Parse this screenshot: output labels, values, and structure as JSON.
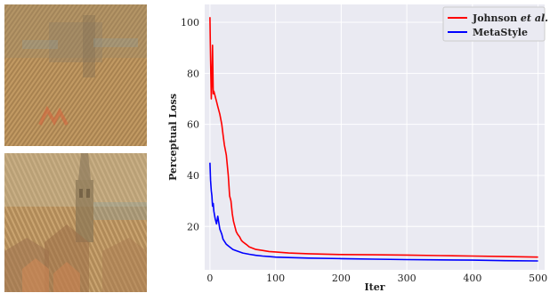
{
  "images": {
    "top": {
      "name": "stylized-building-noisy"
    },
    "bottom": {
      "name": "stylized-tower-city"
    }
  },
  "colors": {
    "plot_bg": "#eaeaf2",
    "grid": "#ffffff",
    "johnson": "#ff0000",
    "metastyle": "#0000ff",
    "thumb_top_base": "#b08a55",
    "thumb_bottom_base": "#b48f5e"
  },
  "chart_data": {
    "type": "line",
    "title": "",
    "xlabel": "Iter",
    "ylabel": "Perceptual Loss",
    "xlim": [
      -8,
      510
    ],
    "ylim": [
      3,
      107
    ],
    "xticks": [
      0,
      100,
      200,
      300,
      400,
      500
    ],
    "yticks": [
      20,
      40,
      60,
      80,
      100
    ],
    "grid": true,
    "legend_position": "top-right",
    "series": [
      {
        "name": "Johnson et al.",
        "name_parts": {
          "prefix": "Johnson ",
          "italic": "et al."
        },
        "color": "#ff0000",
        "x": [
          0,
          1,
          2,
          3,
          4,
          5,
          6,
          8,
          10,
          12,
          15,
          18,
          20,
          22,
          25,
          28,
          30,
          32,
          34,
          36,
          38,
          40,
          42,
          45,
          48,
          50,
          55,
          60,
          70,
          80,
          90,
          100,
          120,
          150,
          200,
          250,
          300,
          350,
          400,
          450,
          500
        ],
        "y": [
          102,
          85,
          70,
          78,
          91,
          72,
          73,
          71,
          69,
          67,
          64,
          60,
          56,
          52,
          48,
          40,
          32,
          30,
          25,
          22,
          20,
          18,
          17,
          16,
          14.5,
          14,
          13,
          12,
          11,
          10.6,
          10.2,
          10,
          9.6,
          9.3,
          9.0,
          8.9,
          8.8,
          8.6,
          8.4,
          8.2,
          8.0
        ]
      },
      {
        "name": "MetaStyle",
        "color": "#0000ff",
        "x": [
          0,
          1,
          2,
          3,
          4,
          5,
          6,
          8,
          10,
          12,
          15,
          18,
          20,
          25,
          30,
          35,
          40,
          50,
          60,
          70,
          80,
          90,
          100,
          120,
          150,
          200,
          250,
          300,
          350,
          400,
          450,
          500
        ],
        "y": [
          45,
          38,
          34,
          32,
          28,
          29,
          26,
          23,
          21,
          24,
          19,
          17,
          15,
          13,
          12,
          11,
          10.5,
          9.6,
          9.1,
          8.7,
          8.4,
          8.2,
          8.0,
          7.8,
          7.6,
          7.4,
          7.2,
          7.0,
          6.9,
          6.8,
          6.6,
          6.5
        ]
      }
    ]
  }
}
